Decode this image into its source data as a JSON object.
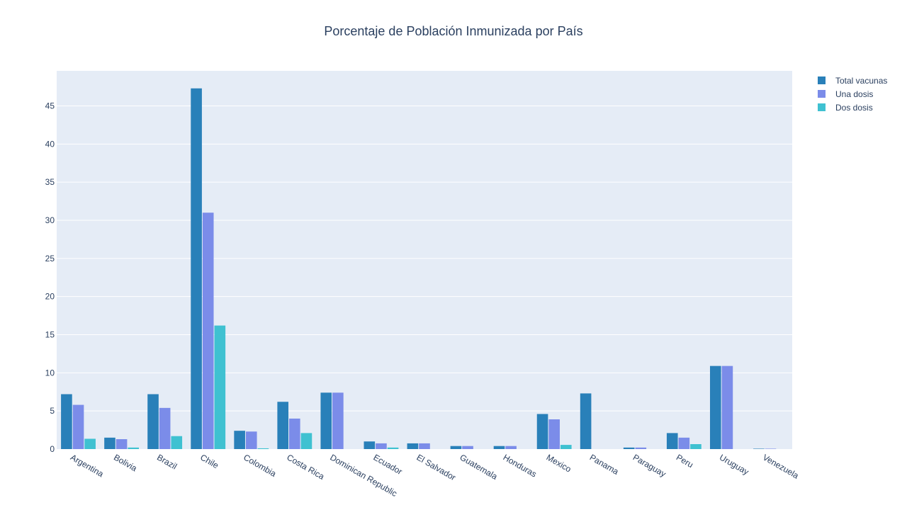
{
  "chart_data": {
    "type": "bar",
    "title": "Porcentaje de Población Inmunizada por País",
    "xlabel": "",
    "ylabel": "",
    "ylim": [
      0,
      49.6
    ],
    "yticks": [
      0,
      5,
      10,
      15,
      20,
      25,
      30,
      35,
      40,
      45
    ],
    "grid": true,
    "legend_position": "top-right",
    "categories": [
      "Argentina",
      "Bolivia",
      "Brazil",
      "Chile",
      "Colombia",
      "Costa Rica",
      "Dominican Republic",
      "Ecuador",
      "El Salvador",
      "Guatemala",
      "Honduras",
      "Mexico",
      "Panama",
      "Paraguay",
      "Peru",
      "Uruguay",
      "Venezuela"
    ],
    "series": [
      {
        "name": "Total vacunas",
        "color": "#2980b9",
        "values": [
          7.2,
          1.5,
          7.2,
          47.3,
          2.4,
          6.2,
          7.4,
          1.0,
          0.75,
          0.4,
          0.4,
          4.6,
          7.3,
          0.2,
          2.1,
          10.9,
          0.05
        ]
      },
      {
        "name": "Una dosis",
        "color": "#7b8ce9",
        "values": [
          5.8,
          1.3,
          5.4,
          31.0,
          2.3,
          4.0,
          7.4,
          0.75,
          0.75,
          0.4,
          0.4,
          3.9,
          0.0,
          0.2,
          1.5,
          10.9,
          0.05
        ]
      },
      {
        "name": "Dos dosis",
        "color": "#3fc1d1",
        "values": [
          1.35,
          0.2,
          1.7,
          16.2,
          0.1,
          2.1,
          0.0,
          0.2,
          0.0,
          0.0,
          0.0,
          0.55,
          0.0,
          0.0,
          0.65,
          0.0,
          0.0
        ]
      }
    ]
  }
}
